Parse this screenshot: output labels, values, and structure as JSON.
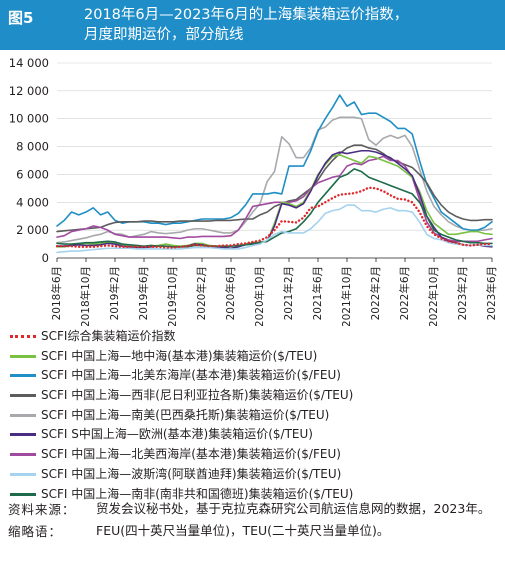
{
  "figure": {
    "number": "图5",
    "title_lines": [
      "2018年6月—2023年6月的上海集装箱运价指数，",
      "月度即期运价，部分航线"
    ]
  },
  "chart_data": {
    "type": "line",
    "x": [
      "2018年6月",
      "2018年7月",
      "2018年8月",
      "2018年9月",
      "2018年10月",
      "2018年11月",
      "2018年12月",
      "2019年1月",
      "2019年2月",
      "2019年3月",
      "2019年4月",
      "2019年5月",
      "2019年6月",
      "2019年7月",
      "2019年8月",
      "2019年9月",
      "2019年10月",
      "2019年11月",
      "2019年12月",
      "2020年1月",
      "2020年2月",
      "2020年3月",
      "2020年4月",
      "2020年5月",
      "2020年6月",
      "2020年7月",
      "2020年8月",
      "2020年9月",
      "2020年10月",
      "2020年11月",
      "2020年12月",
      "2021年1月",
      "2021年2月",
      "2021年3月",
      "2021年4月",
      "2021年5月",
      "2021年6月",
      "2021年7月",
      "2021年8月",
      "2021年9月",
      "2021年10月",
      "2021年11月",
      "2021年12月",
      "2022年1月",
      "2022年2月",
      "2022年3月",
      "2022年4月",
      "2022年5月",
      "2022年6月",
      "2022年7月",
      "2022年8月",
      "2022年9月",
      "2022年10月",
      "2022年11月",
      "2022年12月",
      "2023年1月",
      "2023年2月",
      "2023年3月",
      "2023年4月",
      "2023年5月",
      "2023年6月"
    ],
    "x_tick_labels": [
      "2018年6月",
      "2018年10月",
      "2019年2月",
      "2019年6月",
      "2019年10月",
      "2020年2月",
      "2020年6月",
      "2020年10月",
      "2021年2月",
      "2021年6月",
      "2021年10月",
      "2022年2月",
      "2022年6月",
      "2022年10月",
      "2023年2月",
      "2023年6月"
    ],
    "y_tick_labels": [
      "0",
      "2 000",
      "4 000",
      "6 000",
      "8 000",
      "10 000",
      "12 000",
      "14 000"
    ],
    "ylim": [
      0,
      14000
    ],
    "y_ticks": [
      0,
      2000,
      4000,
      6000,
      8000,
      10000,
      12000,
      14000
    ],
    "series": [
      {
        "name": "SCFI综合集装箱运价指数",
        "color": "#e0282b",
        "dash": "dotted",
        "values": [
          850,
          850,
          850,
          800,
          800,
          800,
          850,
          900,
          850,
          800,
          800,
          800,
          800,
          800,
          800,
          750,
          750,
          800,
          850,
          950,
          900,
          850,
          850,
          900,
          900,
          1000,
          1050,
          1150,
          1250,
          1500,
          2000,
          2650,
          2600,
          2550,
          2900,
          3600,
          3700,
          4000,
          4300,
          4550,
          4600,
          4650,
          4800,
          5050,
          5000,
          4800,
          4500,
          4250,
          4200,
          4000,
          3300,
          2300,
          1700,
          1400,
          1200,
          1100,
          950,
          900,
          950,
          1000,
          1000
        ]
      },
      {
        "name": "SCFI 中国上海—地中海(基本港)集装箱运价($/TEU)",
        "color": "#7ac143",
        "dash": "solid",
        "values": [
          800,
          800,
          900,
          1000,
          1050,
          1000,
          1050,
          1150,
          1100,
          900,
          850,
          800,
          800,
          850,
          900,
          1000,
          900,
          850,
          900,
          1050,
          1050,
          900,
          850,
          800,
          700,
          800,
          1000,
          1100,
          1150,
          1200,
          2500,
          4000,
          3900,
          3700,
          4000,
          4900,
          6000,
          6700,
          7300,
          7400,
          7200,
          7000,
          6800,
          7300,
          7200,
          7000,
          6800,
          6600,
          6200,
          5800,
          4800,
          3400,
          2500,
          2100,
          1700,
          1700,
          1800,
          1900,
          1900,
          1750,
          1700
        ]
      },
      {
        "name": "SCFI 中国上海—北美东海岸(基本港)集装箱运价($/FEU)",
        "color": "#1f8fc5",
        "dash": "solid",
        "values": [
          2300,
          2700,
          3300,
          3100,
          3300,
          3600,
          3100,
          3300,
          2700,
          2500,
          2600,
          2600,
          2600,
          2500,
          2500,
          2400,
          2500,
          2500,
          2600,
          2700,
          2800,
          2800,
          2800,
          2800,
          2900,
          3200,
          3800,
          4600,
          4600,
          4600,
          4700,
          4600,
          6600,
          6600,
          6600,
          7700,
          9100,
          10000,
          10800,
          11700,
          10900,
          11200,
          10300,
          10400,
          10400,
          10100,
          9800,
          9300,
          9300,
          8900,
          7000,
          5300,
          4300,
          3300,
          2900,
          2500,
          2100,
          2000,
          2000,
          2200,
          2600
        ]
      },
      {
        "name": "SCFI 中国上海—西非(尼日利亚拉各斯)集装箱运价($/TEU)",
        "color": "#5c5c5c",
        "dash": "solid",
        "values": [
          1900,
          1950,
          2000,
          2050,
          2100,
          2150,
          2200,
          2400,
          2550,
          2600,
          2600,
          2600,
          2650,
          2650,
          2600,
          2600,
          2600,
          2650,
          2650,
          2650,
          2650,
          2650,
          2700,
          2700,
          2700,
          2750,
          2800,
          2800,
          3100,
          3300,
          3700,
          3900,
          4100,
          4200,
          4600,
          5000,
          5600,
          6400,
          7000,
          7500,
          7900,
          8100,
          8100,
          7900,
          7800,
          7500,
          7100,
          6900,
          6700,
          6500,
          6000,
          5400,
          4500,
          3800,
          3300,
          3000,
          2800,
          2700,
          2700,
          2750,
          2750
        ]
      },
      {
        "name": "SCFI 中国上海—南美(巴西桑托斯)集装箱运价($/TEU)",
        "color": "#a7a9ac",
        "dash": "solid",
        "values": [
          1100,
          1150,
          1250,
          1350,
          1450,
          1600,
          1700,
          1900,
          1750,
          1700,
          1500,
          1600,
          1700,
          1900,
          1800,
          1750,
          1800,
          1850,
          2000,
          2100,
          2100,
          2000,
          1900,
          1800,
          1800,
          2000,
          2600,
          3300,
          3900,
          5500,
          6200,
          8700,
          8200,
          7200,
          7200,
          7900,
          9200,
          9400,
          9900,
          10100,
          10100,
          10100,
          10000,
          8500,
          8100,
          8600,
          8800,
          8600,
          8800,
          8000,
          6400,
          4800,
          3700,
          3100,
          2600,
          2300,
          2100,
          2000,
          2000,
          2000,
          2100
        ]
      },
      {
        "name": "SCFI S中国上海—欧洲(基本港)集装箱运价($/TEU)",
        "color": "#4a2d82",
        "dash": "solid",
        "values": [
          850,
          850,
          900,
          950,
          900,
          900,
          950,
          1050,
          1000,
          850,
          800,
          750,
          750,
          800,
          850,
          850,
          800,
          800,
          850,
          1000,
          950,
          850,
          800,
          750,
          700,
          800,
          950,
          1050,
          1100,
          1200,
          2300,
          3900,
          3800,
          3600,
          3900,
          4800,
          5900,
          6800,
          7400,
          7600,
          7500,
          7600,
          7700,
          7700,
          7600,
          7400,
          7200,
          6800,
          6400,
          5900,
          4600,
          3000,
          2200,
          1500,
          1200,
          1100,
          950,
          900,
          950,
          850,
          800
        ]
      },
      {
        "name": "SCFI 中国上海—北美西海岸(基本港)集装箱运价($/FEU)",
        "color": "#a04ba0",
        "dash": "solid",
        "values": [
          1500,
          1600,
          1900,
          2000,
          2100,
          2300,
          2200,
          2000,
          1700,
          1600,
          1500,
          1500,
          1500,
          1500,
          1500,
          1500,
          1450,
          1400,
          1500,
          1500,
          1550,
          1550,
          1550,
          1550,
          1600,
          2000,
          2800,
          3700,
          3800,
          3900,
          4000,
          4000,
          4000,
          4100,
          4400,
          5000,
          5400,
          5600,
          5800,
          5900,
          6600,
          6800,
          6700,
          7000,
          7100,
          7300,
          7000,
          7000,
          6600,
          5800,
          4200,
          2600,
          1800,
          1500,
          1300,
          1200,
          1200,
          1200,
          1200,
          1300,
          1400
        ]
      },
      {
        "name": "SCFI 中国上海—波斯湾(阿联酋迪拜)集装箱运价($/TEU)",
        "color": "#a5d3ee",
        "dash": "solid",
        "values": [
          400,
          450,
          500,
          500,
          550,
          600,
          650,
          700,
          700,
          700,
          700,
          650,
          650,
          650,
          650,
          650,
          650,
          650,
          700,
          750,
          750,
          750,
          700,
          650,
          650,
          650,
          750,
          900,
          1000,
          1300,
          1700,
          1900,
          1800,
          1800,
          1800,
          2100,
          2600,
          3200,
          3400,
          3500,
          3800,
          3800,
          3400,
          3400,
          3300,
          3500,
          3600,
          3400,
          3400,
          3300,
          2600,
          1700,
          1400,
          1300,
          1100,
          1000,
          950,
          900,
          950,
          900,
          900
        ]
      },
      {
        "name": "SCFI 中国上海—南非(南非共和国德班)集装箱运价($/TEU)",
        "color": "#1d6b4a",
        "dash": "solid",
        "values": [
          1050,
          1000,
          1000,
          1050,
          1100,
          1100,
          1150,
          1200,
          1150,
          1000,
          950,
          900,
          850,
          900,
          850,
          850,
          800,
          800,
          800,
          900,
          900,
          850,
          850,
          850,
          850,
          900,
          950,
          1000,
          1100,
          1200,
          1500,
          1800,
          1900,
          2100,
          2600,
          3200,
          4000,
          4600,
          5200,
          5800,
          6000,
          6400,
          6200,
          5800,
          5600,
          5400,
          5200,
          5000,
          4800,
          4600,
          4000,
          3000,
          2000,
          1700,
          1500,
          1300,
          1200,
          1100,
          1100,
          1050,
          1050
        ]
      }
    ]
  },
  "source": {
    "label": "资料来源：",
    "text": "贸发会议秘书处，基于克拉克森研究公司航运信息网的数据，2023年。"
  },
  "abbreviations": {
    "label": "缩略语：",
    "text": "FEU(四十英尺当量单位)，TEU(二十英尺当量单位)。"
  }
}
